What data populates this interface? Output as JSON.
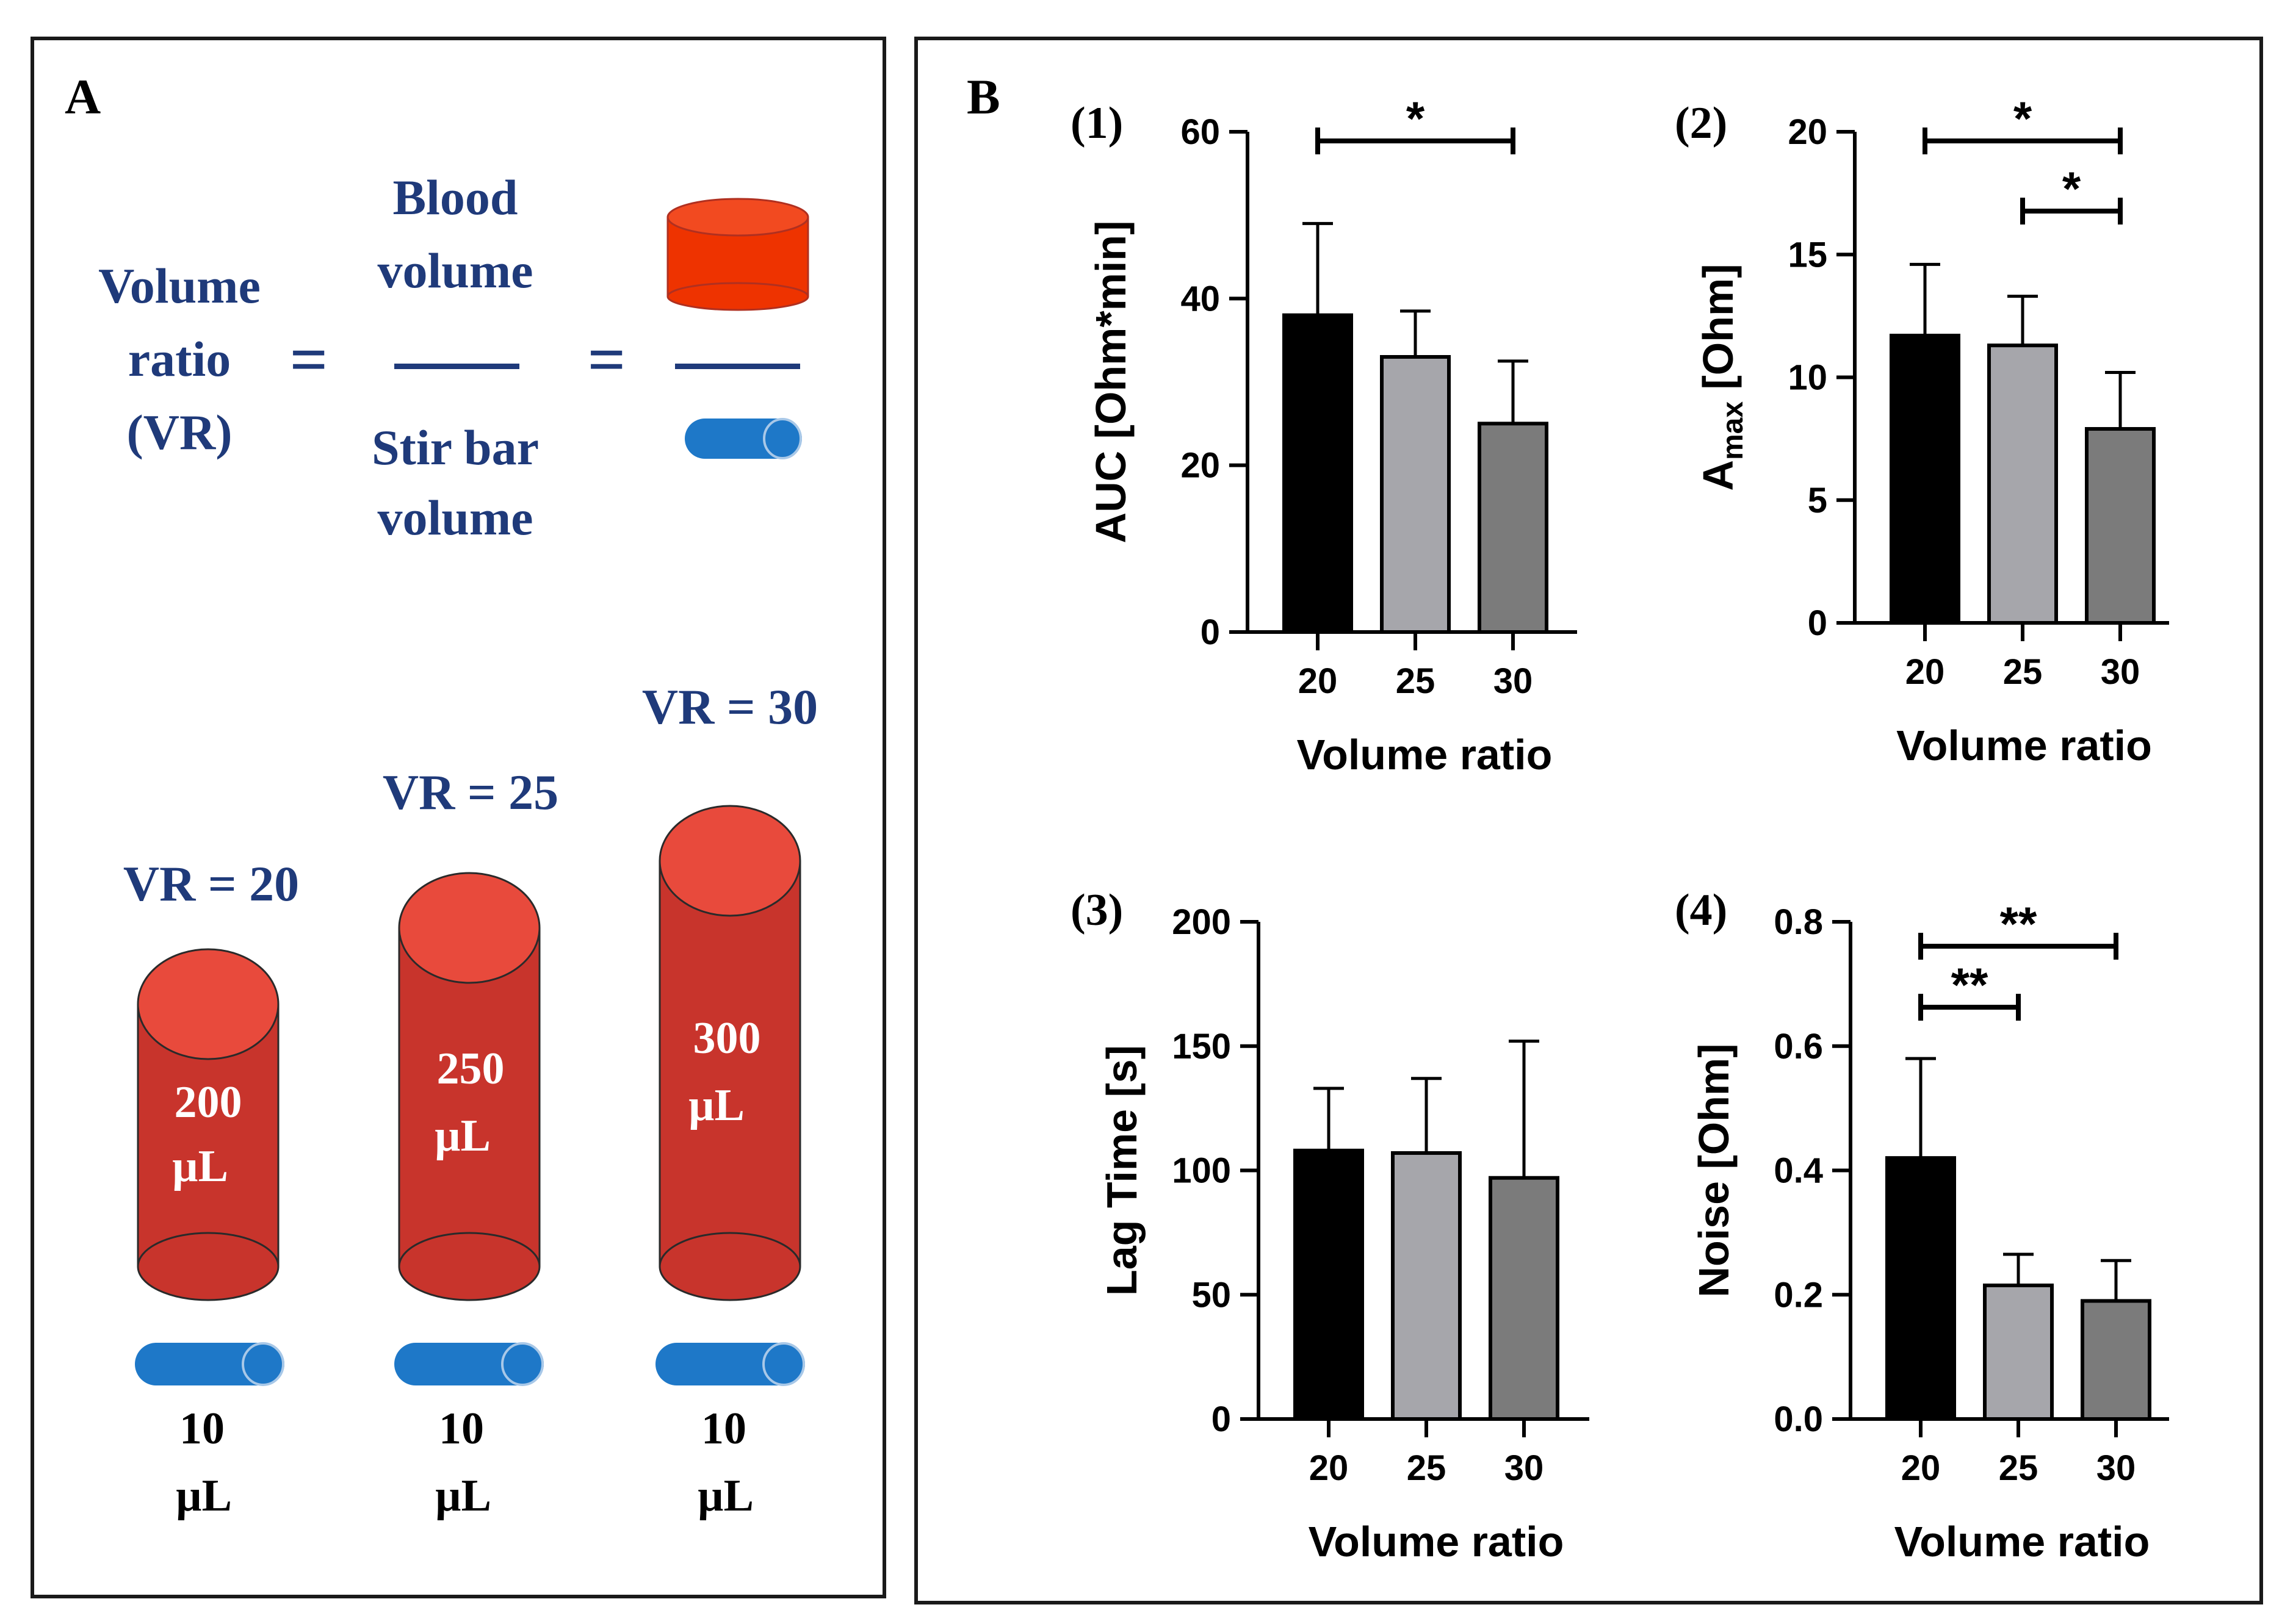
{
  "panel_a": {
    "label": "A",
    "equation": {
      "left": [
        "Volume",
        "ratio",
        "(VR)"
      ],
      "equals": "=",
      "numerator": [
        "Blood",
        "volume"
      ],
      "denominator": [
        "Stir bar",
        "volume"
      ]
    },
    "cylinders": [
      {
        "vr_label": "VR = 20",
        "blood": [
          "200",
          "µL"
        ],
        "bar": [
          "10",
          "µL"
        ]
      },
      {
        "vr_label": "VR = 25",
        "blood": [
          "250",
          "µL"
        ],
        "bar": [
          "10",
          "µL"
        ]
      },
      {
        "vr_label": "VR = 30",
        "blood": [
          "300",
          "µL"
        ],
        "bar": [
          "10",
          "µL"
        ]
      }
    ],
    "colors": {
      "text": "#1f3a7a",
      "blood": "#c8342c",
      "blood_top": "#e84a3c",
      "blood_small": "#ee3300",
      "stir_bar": "#1e78c8"
    }
  },
  "panel_b": {
    "label": "B",
    "bar_colors": [
      "#000000",
      "#a6a6ab",
      "#7b7b7b"
    ]
  },
  "chart_data": [
    {
      "type": "bar",
      "panel": "(1)",
      "categories": [
        "20",
        "25",
        "30"
      ],
      "values": [
        38,
        33,
        25
      ],
      "errors": [
        11,
        5.5,
        7.5
      ],
      "ylim": [
        0,
        60
      ],
      "yticks": [
        "0",
        "20",
        "40",
        "60"
      ],
      "ylabel": "AUC [Ohm*min]",
      "xlabel": "Volume ratio",
      "significance": [
        {
          "from": 0,
          "to": 2,
          "label": "*"
        }
      ]
    },
    {
      "type": "bar",
      "panel": "(2)",
      "categories": [
        "20",
        "25",
        "30"
      ],
      "values": [
        11.7,
        11.3,
        7.9
      ],
      "errors": [
        2.9,
        2.0,
        2.3
      ],
      "ylim": [
        0,
        20
      ],
      "yticks": [
        "0",
        "5",
        "10",
        "15",
        "20"
      ],
      "ylabel_main": "A",
      "ylabel_sub": "max",
      "ylabel_rest": " [Ohm]",
      "xlabel": "Volume ratio",
      "significance": [
        {
          "from": 0,
          "to": 2,
          "label": "*"
        },
        {
          "from": 1,
          "to": 2,
          "label": "*"
        }
      ]
    },
    {
      "type": "bar",
      "panel": "(3)",
      "categories": [
        "20",
        "25",
        "30"
      ],
      "values": [
        108,
        107,
        97
      ],
      "errors": [
        25,
        30,
        55
      ],
      "ylim": [
        0,
        200
      ],
      "yticks": [
        "0",
        "50",
        "100",
        "150",
        "200"
      ],
      "ylabel": "Lag Time [s]",
      "xlabel": "Volume ratio",
      "significance": []
    },
    {
      "type": "bar",
      "panel": "(4)",
      "categories": [
        "20",
        "25",
        "30"
      ],
      "values": [
        0.42,
        0.215,
        0.19
      ],
      "errors": [
        0.16,
        0.05,
        0.065
      ],
      "ylim": [
        0,
        0.8
      ],
      "yticks": [
        "0.0",
        "0.2",
        "0.4",
        "0.6",
        "0.8"
      ],
      "ylabel": "Noise [Ohm]",
      "xlabel": "Volume ratio",
      "significance": [
        {
          "from": 0,
          "to": 2,
          "label": "**"
        },
        {
          "from": 0,
          "to": 1,
          "label": "**"
        }
      ]
    }
  ]
}
